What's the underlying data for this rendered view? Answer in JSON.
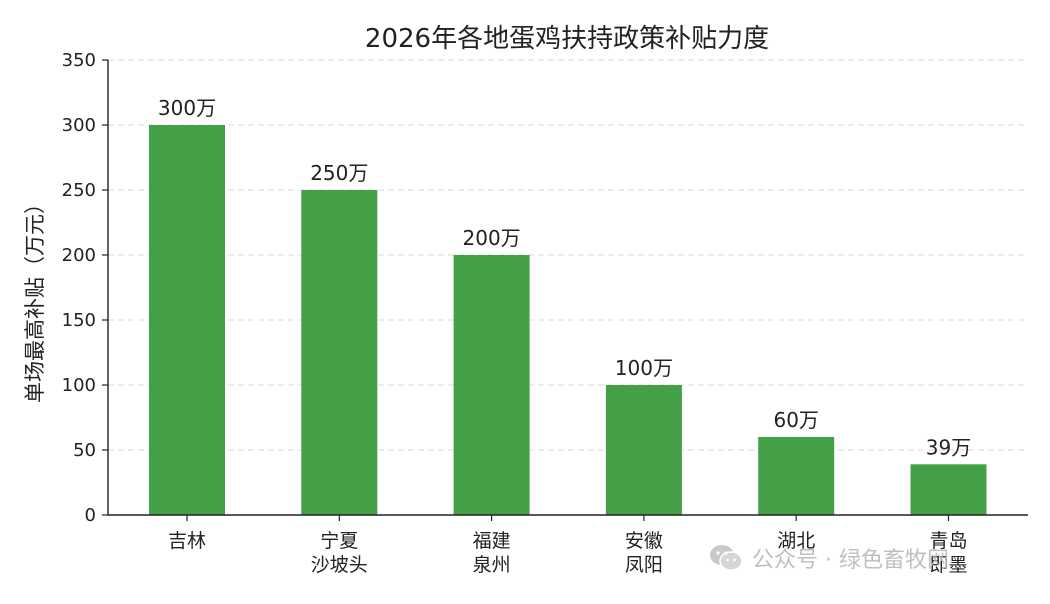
{
  "chart_data": {
    "type": "bar",
    "title": "2026年各地蛋鸡扶持政策补贴力度",
    "xlabel": "",
    "ylabel": "单场最高补贴（万元）",
    "ylim": [
      0,
      350
    ],
    "yticks": [
      0,
      50,
      100,
      150,
      200,
      250,
      300,
      350
    ],
    "grid": "horizontal-dashed",
    "categories": [
      "吉林",
      "宁夏\n沙坡头",
      "福建\n泉州",
      "安徽\n凤阳",
      "湖北",
      "青岛\n即墨"
    ],
    "values": [
      300,
      250,
      200,
      100,
      60,
      39
    ],
    "value_labels": [
      "300万",
      "250万",
      "200万",
      "100万",
      "60万",
      "39万"
    ],
    "bar_color": "#43a047"
  },
  "watermark": {
    "text": "公众号 · 绿色畜牧网",
    "icon": "wechat-icon"
  }
}
